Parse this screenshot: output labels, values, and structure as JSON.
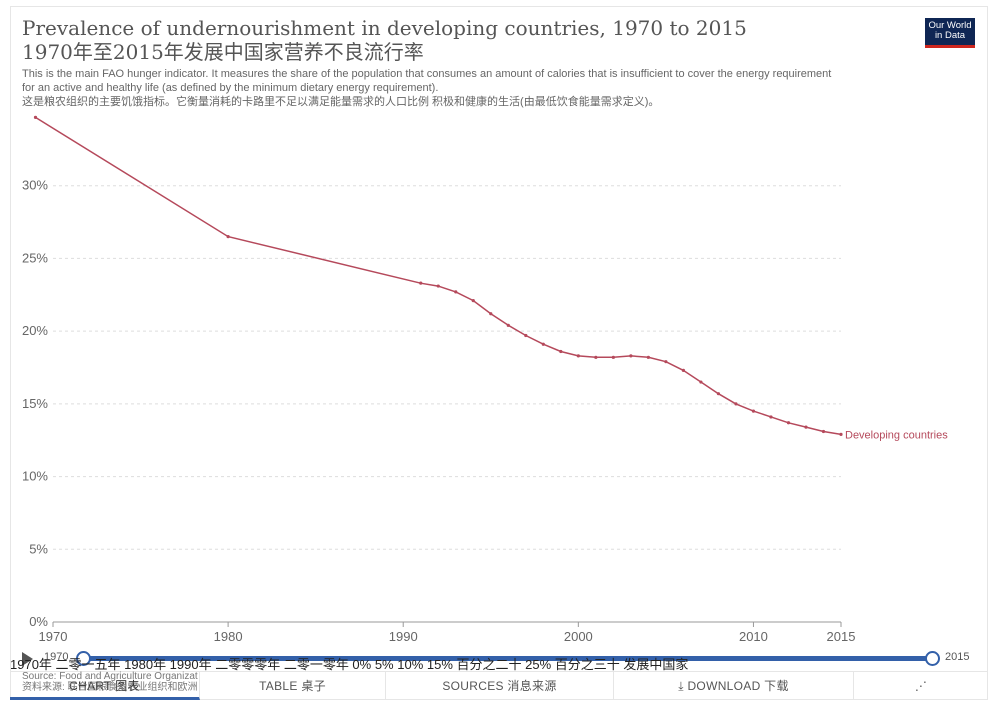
{
  "header": {
    "title": "Prevalence of undernourishment in developing countries, 1970 to 2015",
    "subtitle": "1970年至2015年发展中国家营养不良流行率",
    "description_line1": "This is the main FAO hunger indicator. It measures the share of the population that consumes an amount of calories that is insufficient to cover the energy requirement",
    "description_line2": "for an active and healthy life (as defined by the minimum dietary energy requirement).",
    "description_zh": "这是粮农组织的主要饥饿指标。它衡量消耗的卡路里不足以满足能量需求的人口比例 积极和健康的生活(由最低饮食能量需求定义)。"
  },
  "logo": {
    "line1": "Our World",
    "line2": "in Data"
  },
  "chart_data": {
    "type": "line",
    "title": "Prevalence of undernourishment in developing countries, 1970 to 2015",
    "xlabel": "",
    "ylabel": "",
    "xlim": [
      1970,
      2015
    ],
    "ylim": [
      0,
      35
    ],
    "y_ticks": [
      0,
      5,
      10,
      15,
      20,
      25,
      30
    ],
    "y_tick_labels": [
      "0%",
      "5%",
      "10%",
      "15%",
      "20%",
      "25%",
      "30%"
    ],
    "x_ticks": [
      1970,
      1980,
      1990,
      2000,
      2010,
      2015
    ],
    "x_tick_labels": [
      "1970",
      "1980",
      "1990",
      "2000",
      "2010",
      "2015"
    ],
    "grid": true,
    "legend": "right, inline at line end",
    "series": [
      {
        "name": "Developing countries",
        "color": "#b5495b",
        "x": [
          1969,
          1980,
          1991,
          1992,
          1993,
          1994,
          1995,
          1996,
          1997,
          1998,
          1999,
          2000,
          2001,
          2002,
          2003,
          2004,
          2005,
          2006,
          2007,
          2008,
          2009,
          2010,
          2011,
          2012,
          2013,
          2014,
          2015
        ],
        "values": [
          34.7,
          26.5,
          23.3,
          23.1,
          22.7,
          22.1,
          21.2,
          20.4,
          19.7,
          19.1,
          18.6,
          18.3,
          18.2,
          18.2,
          18.3,
          18.2,
          17.9,
          17.3,
          16.5,
          15.7,
          15.0,
          14.5,
          14.1,
          13.7,
          13.4,
          13.1,
          12.9
        ]
      }
    ]
  },
  "timeline": {
    "start": "1970",
    "end": "2015"
  },
  "overlay_text": "1970年 二零一五年 1980年 1990年 二零零零年 二零一零年 0% 5% 10% 15% 百分之二十 25% 百分之三十 发展中国家",
  "source": {
    "line1": "Source: Food and Agriculture Organizat",
    "line2": "资料来源: 联合国粮食及农业组织和欧洲"
  },
  "tabs": {
    "chart": "CHART 图表",
    "table": "TABLE 桌子",
    "sources": "SOURCES 消息来源",
    "download": "DOWNLOAD 下载"
  },
  "colors": {
    "line": "#b5495b",
    "accent": "#3360a9",
    "logo_bg": "#0f2654",
    "logo_bar": "#ce261e"
  }
}
